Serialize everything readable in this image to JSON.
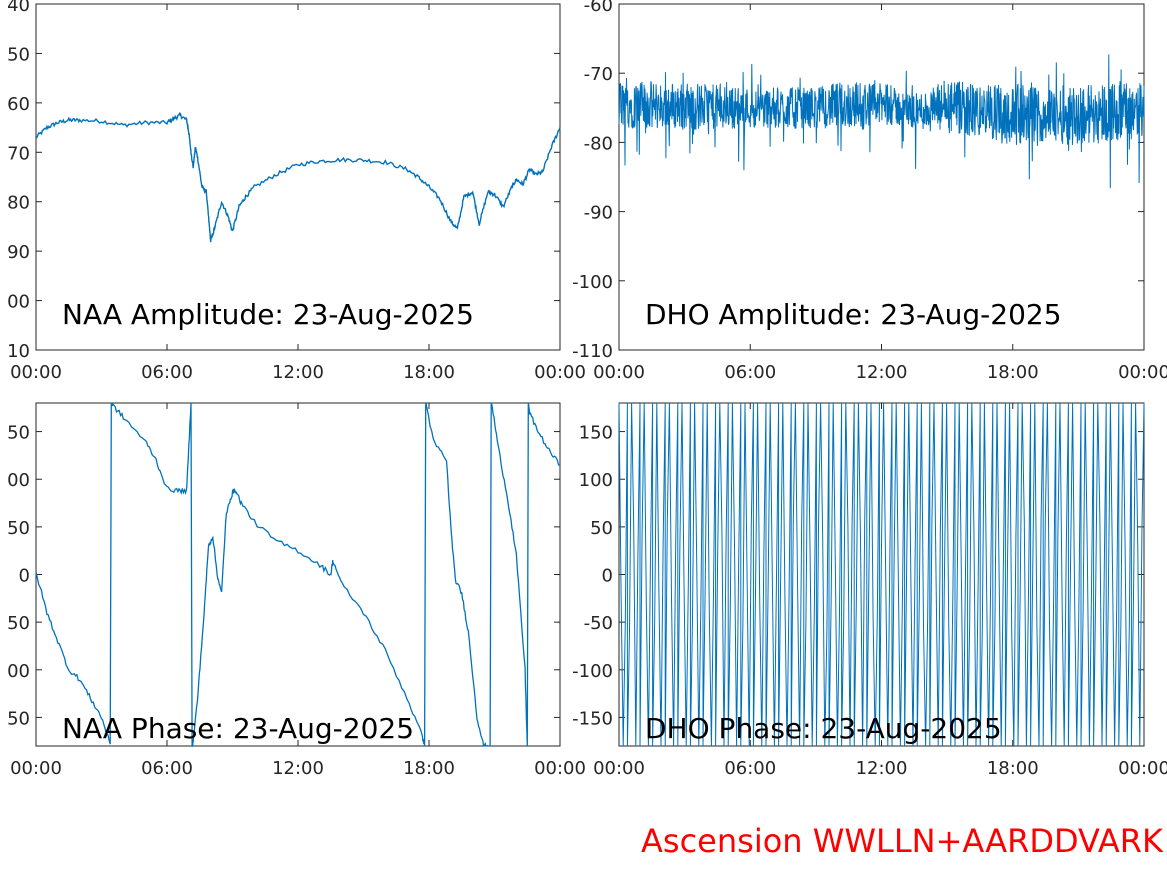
{
  "footer": "Ascension WWLLN+AARDDVARK",
  "colors": {
    "line": "#0072BD",
    "axis": "#262626",
    "footer": "#ff0000"
  },
  "chart_data": [
    {
      "type": "line",
      "title": "NAA Amplitude: 23-Aug-2025",
      "x_ticks": [
        "00:00",
        "06:00",
        "12:00",
        "18:00",
        "00:00"
      ],
      "xlim_hours": [
        0,
        24
      ],
      "y_ticks": [
        "40",
        "50",
        "60",
        "70",
        "80",
        "90",
        "00",
        "10"
      ],
      "ylim": [
        -110,
        -40
      ],
      "x": [
        0,
        0.5,
        1,
        1.5,
        2,
        3,
        4,
        5,
        6,
        6.3,
        6.6,
        6.9,
        7.0,
        7.1,
        7.2,
        7.3,
        7.4,
        7.6,
        7.8,
        7.9,
        8.0,
        8.2,
        8.5,
        8.8,
        9.0,
        9.3,
        9.6,
        10,
        11,
        12,
        13,
        14,
        15,
        16,
        17,
        17.5,
        18.0,
        18.5,
        19.0,
        19.3,
        19.6,
        20.0,
        20.3,
        20.7,
        21.0,
        21.4,
        21.8,
        22.0,
        22.3,
        22.6,
        22.9,
        23.2,
        23.6,
        24
      ],
      "y": [
        -67,
        -65,
        -64,
        -63.5,
        -63.5,
        -63.7,
        -64.5,
        -64,
        -64,
        -63.2,
        -62.5,
        -63.5,
        -66,
        -70,
        -73,
        -69,
        -71,
        -77,
        -78,
        -83,
        -88,
        -85,
        -80,
        -83,
        -86,
        -81,
        -79,
        -77,
        -74.5,
        -72.5,
        -71.8,
        -71.5,
        -71.6,
        -72,
        -73.5,
        -75,
        -77,
        -79.5,
        -84,
        -85.5,
        -79,
        -78,
        -84.5,
        -78,
        -78.5,
        -81,
        -77,
        -75.5,
        -76.5,
        -73.5,
        -74.5,
        -74,
        -69,
        -65
      ]
    },
    {
      "type": "line",
      "title": "DHO Amplitude: 23-Aug-2025",
      "x_ticks": [
        "00:00",
        "06:00",
        "12:00",
        "18:00",
        "00:00"
      ],
      "xlim_hours": [
        0,
        24
      ],
      "y_ticks": [
        "-60",
        "-70",
        "-80",
        "-90",
        "-100",
        "-110"
      ],
      "ylim": [
        -110,
        -60
      ],
      "x": [
        0,
        3,
        6,
        9,
        10.5,
        12,
        13.5,
        15,
        16.5,
        18,
        19.5,
        21,
        22.5,
        24
      ],
      "center": [
        -74.5,
        -74.8,
        -75,
        -75,
        -74.5,
        -74.5,
        -75.5,
        -75,
        -75.5,
        -76,
        -76,
        -76,
        -75.5,
        -75.5
      ],
      "spread": [
        3.5,
        3.5,
        3,
        3,
        3.5,
        3,
        2.5,
        4,
        4,
        4.5,
        4,
        4.5,
        4.5,
        4
      ]
    },
    {
      "type": "line",
      "title": "NAA Phase: 23-Aug-2025",
      "x_ticks": [
        "00:00",
        "06:00",
        "12:00",
        "18:00",
        "00:00"
      ],
      "xlim_hours": [
        0,
        24
      ],
      "y_ticks": [
        "50",
        "00",
        "50",
        "0",
        "50",
        "00",
        "50"
      ],
      "ylim": [
        -180,
        180
      ],
      "x": [
        0,
        0.5,
        1,
        1.5,
        2,
        2.5,
        3.0,
        3.4,
        3.45,
        3.5,
        4.0,
        5.0,
        5.5,
        6.0,
        6.5,
        6.9,
        7.1,
        7.15,
        7.2,
        7.4,
        7.7,
        7.9,
        8.1,
        8.3,
        8.5,
        8.7,
        8.9,
        9.1,
        9.4,
        10,
        11,
        12,
        13,
        13.5,
        13.6,
        14,
        15,
        16,
        17,
        17.7,
        17.8,
        17.85,
        17.9,
        18.2,
        18.8,
        19.0,
        19.2,
        19.5,
        19.8,
        20.2,
        20.5,
        20.8,
        20.85,
        20.9,
        21.2,
        21.6,
        22.0,
        22.4,
        22.5,
        22.55,
        22.6,
        23.0,
        23.5,
        24
      ],
      "y": [
        2,
        -40,
        -70,
        -100,
        -110,
        -130,
        -150,
        -178,
        180,
        178,
        165,
        140,
        120,
        90,
        88,
        88,
        180,
        -180,
        -175,
        -130,
        -40,
        30,
        40,
        0,
        -20,
        60,
        80,
        90,
        75,
        55,
        35,
        25,
        10,
        0,
        15,
        -10,
        -40,
        -80,
        -130,
        -170,
        -180,
        180,
        175,
        140,
        120,
        50,
        -5,
        -20,
        -60,
        -150,
        -180,
        -180,
        180,
        175,
        130,
        80,
        20,
        -100,
        -180,
        180,
        170,
        150,
        130,
        115
      ]
    },
    {
      "type": "line",
      "title": "DHO Phase: 23-Aug-2025",
      "x_ticks": [
        "00:00",
        "06:00",
        "12:00",
        "18:00",
        "00:00"
      ],
      "xlim_hours": [
        0,
        24
      ],
      "y_ticks": [
        "150",
        "100",
        "50",
        "0",
        "-50",
        "-100",
        "-150"
      ],
      "ylim": [
        -180,
        180
      ],
      "wraps_per_hour": 5.2
    }
  ]
}
